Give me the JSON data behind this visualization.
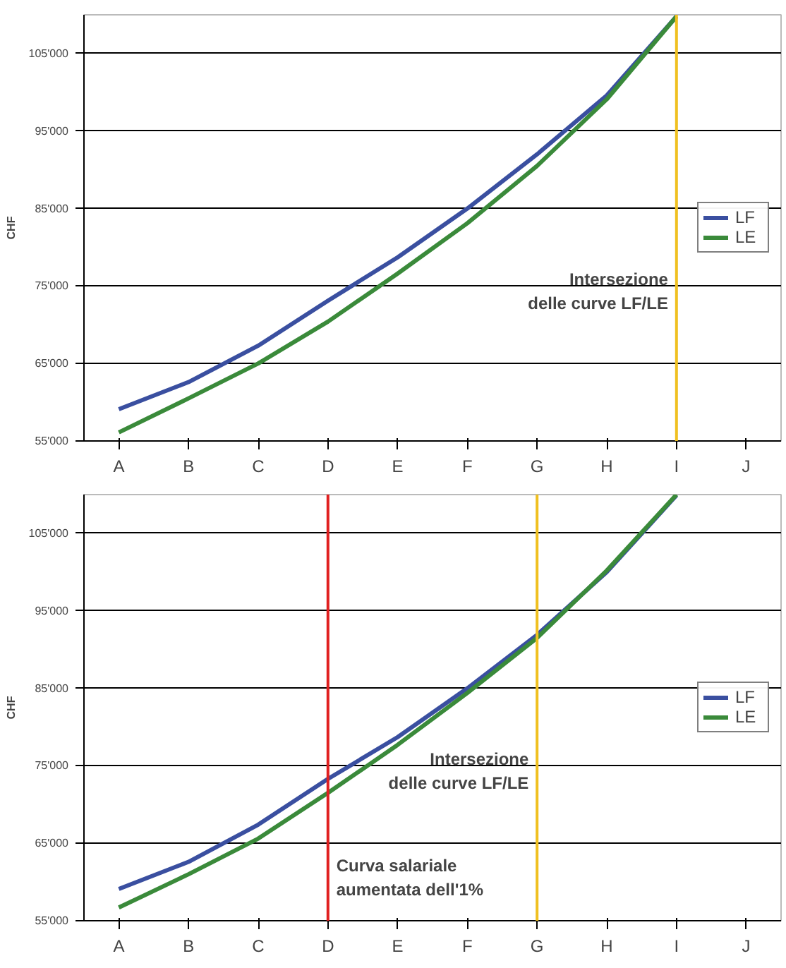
{
  "chart_data": [
    {
      "type": "line",
      "ylabel": "CHF",
      "categories": [
        "A",
        "B",
        "C",
        "D",
        "E",
        "F",
        "G",
        "H",
        "I",
        "J"
      ],
      "series": [
        {
          "name": "LF",
          "color": "#3a4fa0",
          "values": [
            59100,
            62600,
            67300,
            73100,
            78700,
            85000,
            92000,
            99600,
            109800,
            null
          ]
        },
        {
          "name": "LE",
          "color": "#3a8a3a",
          "values": [
            56100,
            60500,
            65000,
            70400,
            76600,
            83100,
            90500,
            99100,
            109800,
            null
          ]
        }
      ],
      "ylim": [
        55000,
        110000
      ],
      "yticks": [
        {
          "value": 55000,
          "label": "55'000"
        },
        {
          "value": 65000,
          "label": "65'000"
        },
        {
          "value": 75000,
          "label": "75'000"
        },
        {
          "value": 85000,
          "label": "85'000"
        },
        {
          "value": 95000,
          "label": "95'000"
        },
        {
          "value": 105000,
          "label": "105'000"
        }
      ],
      "grid": "y",
      "legend": "right",
      "line_style": "solid",
      "ref_lines": [
        {
          "axis": "x",
          "value": "I",
          "label": "Intersezione\ndelle curve LF/LE",
          "color": "#f0c020"
        }
      ]
    },
    {
      "type": "line",
      "ylabel": "CHF",
      "categories": [
        "A",
        "B",
        "C",
        "D",
        "E",
        "F",
        "G",
        "H",
        "I",
        "J"
      ],
      "series": [
        {
          "name": "LF",
          "color": "#3a4fa0",
          "values": [
            59100,
            62600,
            67400,
            73300,
            78700,
            85000,
            91900,
            100000,
            109900,
            null
          ]
        },
        {
          "name": "LE",
          "color": "#3a8a3a",
          "values": [
            56700,
            61000,
            65600,
            71500,
            77700,
            84400,
            91500,
            100200,
            110000,
            null
          ]
        }
      ],
      "ylim": [
        55000,
        110000
      ],
      "yticks": [
        {
          "value": 55000,
          "label": "55'000"
        },
        {
          "value": 65000,
          "label": "65'000"
        },
        {
          "value": 75000,
          "label": "75'000"
        },
        {
          "value": 85000,
          "label": "85'000"
        },
        {
          "value": 95000,
          "label": "95'000"
        },
        {
          "value": 105000,
          "label": "105'000"
        }
      ],
      "grid": "y",
      "legend": "right",
      "line_style": "solid",
      "ref_lines": [
        {
          "axis": "x",
          "value": "G",
          "label": "Intersezione\ndelle curve LF/LE",
          "color": "#f0c020"
        },
        {
          "axis": "x",
          "value": "D",
          "label": "Curva salariale\naumentata dell'1%",
          "color": "#e02020"
        }
      ]
    }
  ]
}
